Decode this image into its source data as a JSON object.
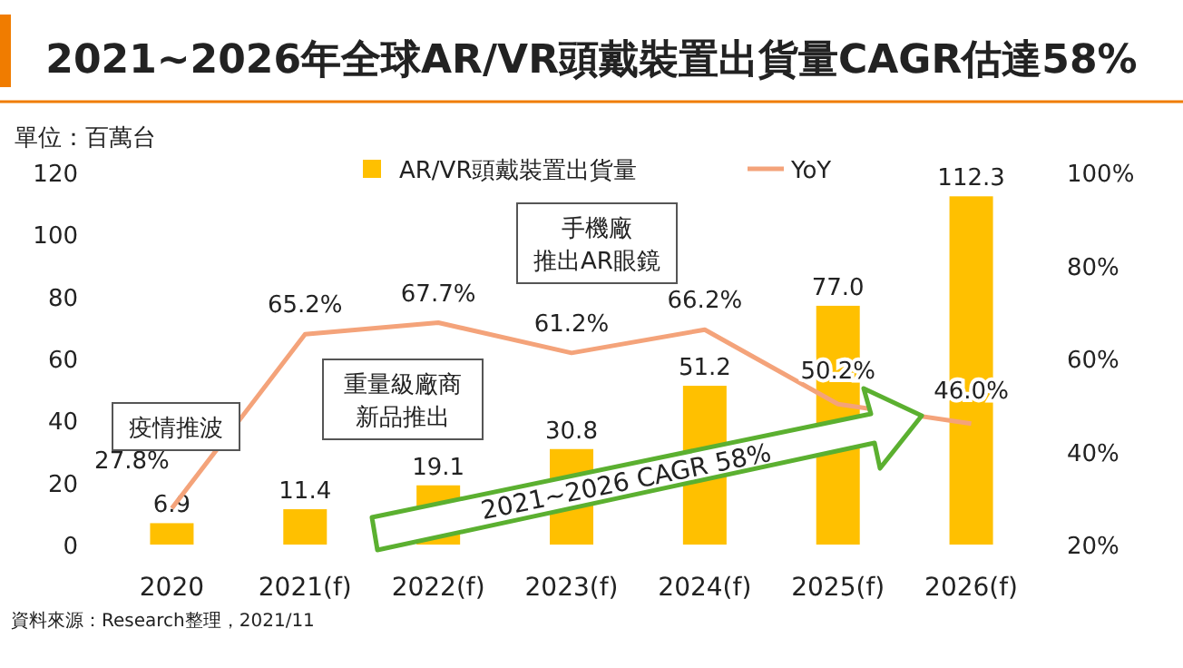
{
  "chart_data": {
    "type": "bar",
    "title": "2021~2026年全球AR/VR頭戴裝置出貨量CAGR估達58%",
    "ylabel": "單位：百萬台",
    "categories": [
      "2020",
      "2021(f)",
      "2022(f)",
      "2023(f)",
      "2024(f)",
      "2025(f)",
      "2026(f)"
    ],
    "series": [
      {
        "name": "AR/VR頭戴裝置出貨量",
        "type": "bar",
        "color": "#ffc000",
        "values": [
          6.9,
          11.4,
          19.1,
          30.8,
          51.2,
          77.0,
          112.3
        ],
        "value_labels": [
          "6.9",
          "11.4",
          "19.1",
          "30.8",
          "51.2",
          "77.0",
          "112.3"
        ]
      },
      {
        "name": "YoY",
        "type": "line",
        "axis": "y2",
        "color": "#f4a37a",
        "values": [
          27.8,
          65.2,
          67.7,
          61.2,
          66.2,
          50.2,
          46.0
        ],
        "value_labels": [
          "27.8%",
          "65.2%",
          "67.7%",
          "61.2%",
          "66.2%",
          "50.2%",
          "46.0%"
        ]
      }
    ],
    "ylim": [
      0,
      120
    ],
    "yticks": [
      0,
      20,
      40,
      60,
      80,
      100,
      120
    ],
    "y2lim": [
      20,
      100
    ],
    "y2ticks": [
      {
        "value": 20,
        "label": "20%"
      },
      {
        "value": 40,
        "label": "40%"
      },
      {
        "value": 60,
        "label": "60%"
      },
      {
        "value": 80,
        "label": "80%"
      },
      {
        "value": 100,
        "label": "100%"
      }
    ],
    "legend": "top",
    "grid": false,
    "annotations": [
      "疫情推波",
      "重量級廠商新品推出",
      "手機廠推出AR眼鏡",
      "2021~2026 CAGR 58%",
      "資料來源：Research整理，2021/11"
    ]
  }
}
